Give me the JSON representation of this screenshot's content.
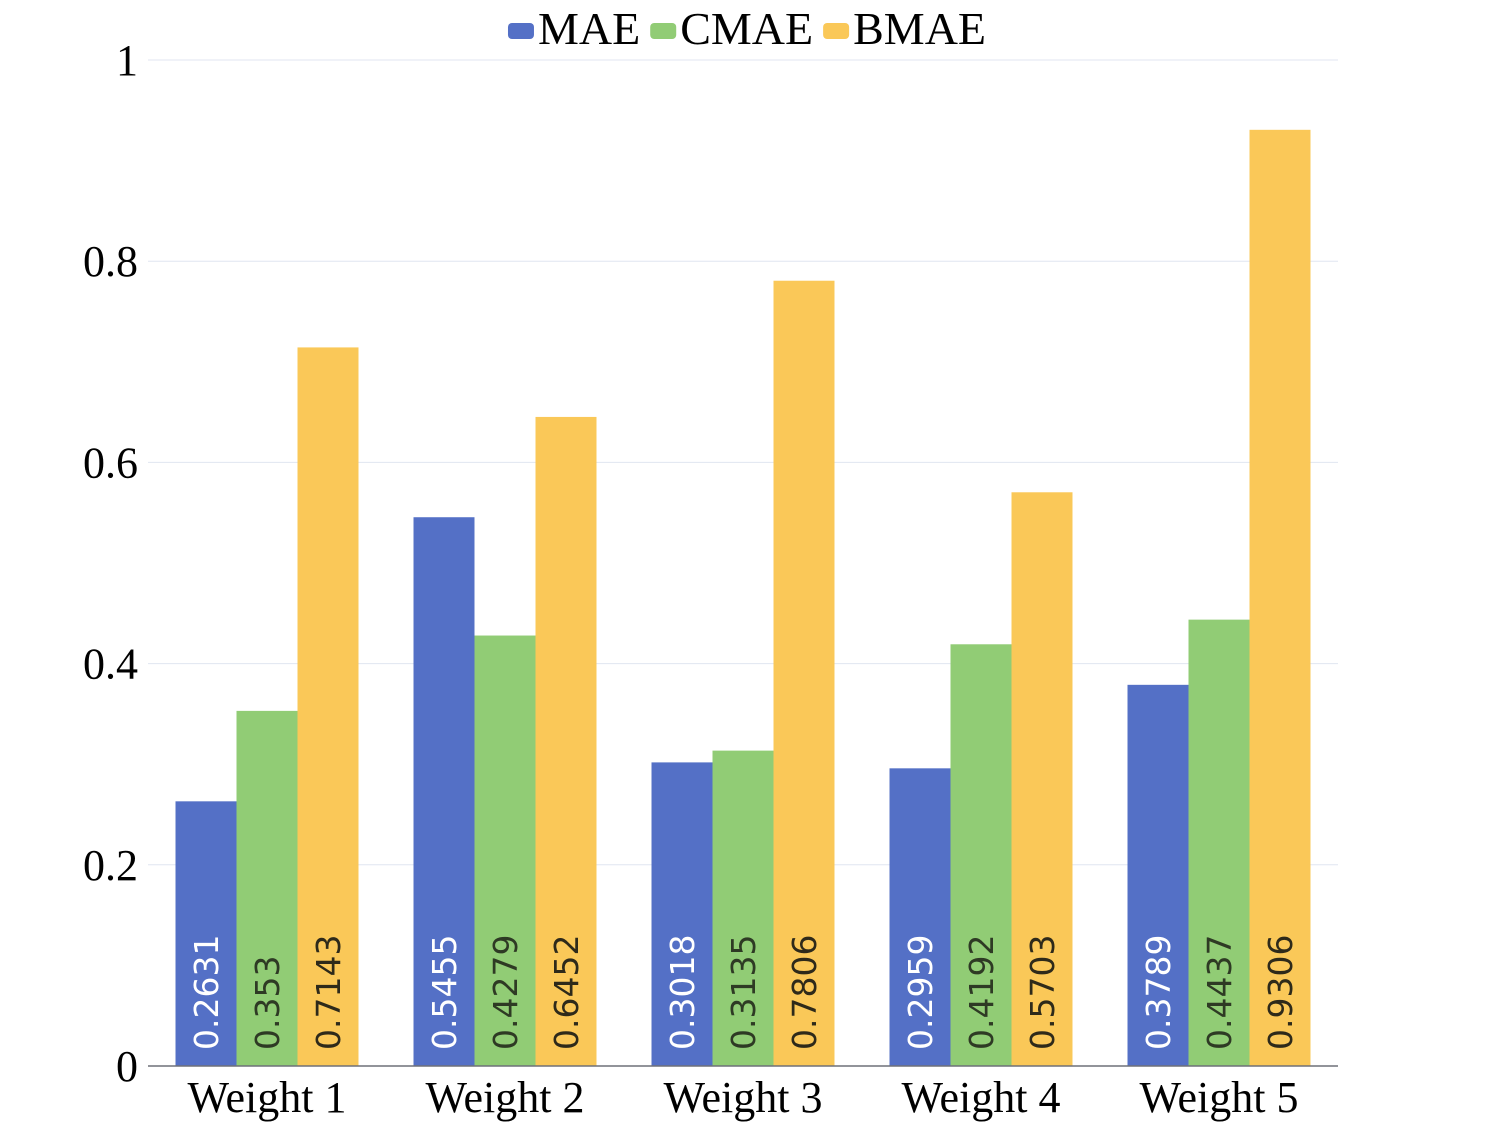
{
  "chart_data": {
    "type": "bar",
    "title": "",
    "xlabel": "",
    "ylabel": "",
    "ylim": [
      0,
      1
    ],
    "yticks": [
      0,
      0.2,
      0.4,
      0.6,
      0.8,
      1
    ],
    "ytick_labels": [
      "0",
      "0.2",
      "0.4",
      "0.6",
      "0.8",
      "1"
    ],
    "grid": true,
    "legend_position": "top-center",
    "categories": [
      "Weight 1",
      "Weight 2",
      "Weight 3",
      "Weight 4",
      "Weight 5"
    ],
    "series": [
      {
        "name": "MAE",
        "color": "#5470C6",
        "label_color": "#FFFFFF",
        "values": [
          0.2631,
          0.5455,
          0.3018,
          0.2959,
          0.3789
        ],
        "labels": [
          "0.2631",
          "0.5455",
          "0.3018",
          "0.2959",
          "0.3789"
        ]
      },
      {
        "name": "CMAE",
        "color": "#91CC75",
        "label_color": "#2E3A24",
        "values": [
          0.353,
          0.4279,
          0.3135,
          0.4192,
          0.4437
        ],
        "labels": [
          "0.353",
          "0.4279",
          "0.3135",
          "0.4192",
          "0.4437"
        ]
      },
      {
        "name": "BMAE",
        "color": "#FAC858",
        "label_color": "#2E2A1A",
        "values": [
          0.7143,
          0.6452,
          0.7806,
          0.5703,
          0.9306
        ],
        "labels": [
          "0.7143",
          "0.6452",
          "0.7806",
          "0.5703",
          "0.9306"
        ]
      }
    ]
  }
}
